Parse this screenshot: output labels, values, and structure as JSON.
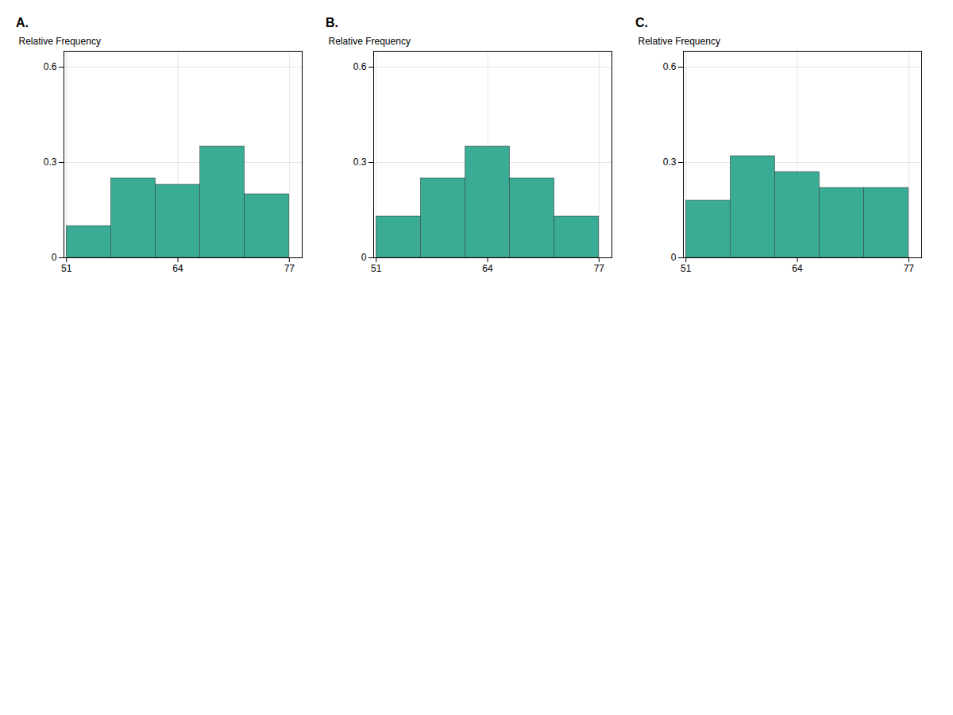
{
  "chart_data": [
    {
      "type": "histogram",
      "title": "A.",
      "ylabel": "Relative Frequency",
      "bins": [
        51,
        56.2,
        61.4,
        66.6,
        71.8,
        77
      ],
      "values": [
        0.1,
        0.25,
        0.23,
        0.35,
        0.2
      ],
      "color": "#3aab94",
      "xlim": [
        50.7,
        78.5
      ],
      "xticks": [
        51,
        64,
        77
      ],
      "ylim": [
        0,
        0.65
      ],
      "yticks": [
        0,
        0.3,
        0.6
      ],
      "grid": true
    },
    {
      "type": "histogram",
      "title": "B.",
      "ylabel": "Relative Frequency",
      "bins": [
        51,
        56.2,
        61.4,
        66.6,
        71.8,
        77
      ],
      "values": [
        0.13,
        0.25,
        0.35,
        0.25,
        0.13
      ],
      "color": "#3aab94",
      "xlim": [
        50.7,
        78.5
      ],
      "xticks": [
        51,
        64,
        77
      ],
      "ylim": [
        0,
        0.65
      ],
      "yticks": [
        0,
        0.3,
        0.6
      ],
      "grid": true
    },
    {
      "type": "histogram",
      "title": "C.",
      "ylabel": "Relative Frequency",
      "bins": [
        51,
        56.2,
        61.4,
        66.6,
        71.8,
        77
      ],
      "values": [
        0.18,
        0.32,
        0.27,
        0.22,
        0.22
      ],
      "color": "#3aab94",
      "xlim": [
        50.7,
        78.5
      ],
      "xticks": [
        51,
        64,
        77
      ],
      "ylim": [
        0,
        0.65
      ],
      "yticks": [
        0,
        0.3,
        0.6
      ],
      "grid": true
    }
  ]
}
